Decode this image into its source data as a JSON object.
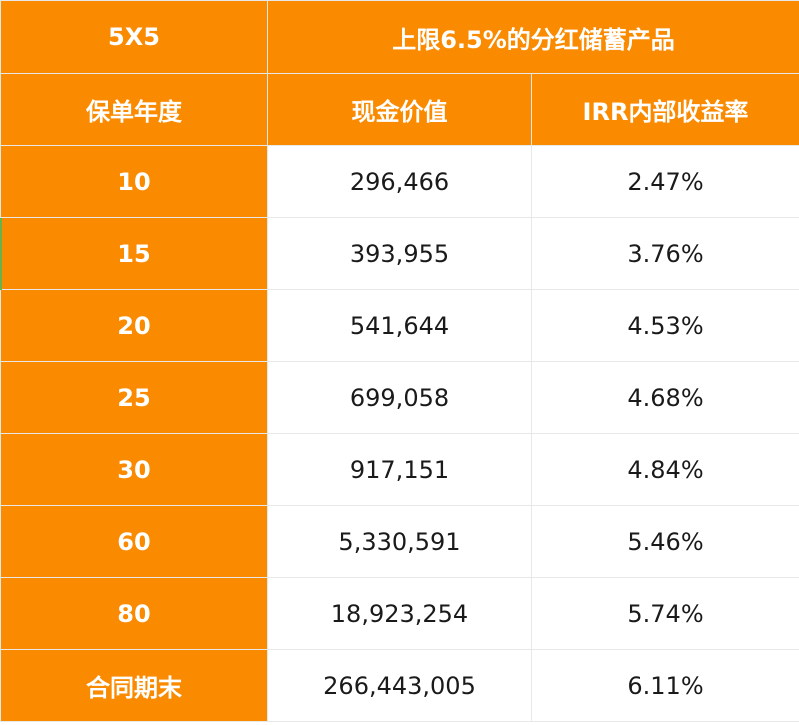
{
  "table": {
    "corner_label": "5X5",
    "product_title": "上限6.5%的分红储蓄产品",
    "headers": {
      "year": "保单年度",
      "cash_value": "现金价值",
      "irr": "IRR内部收益率"
    },
    "rows": [
      {
        "year": "10",
        "cash_value": "296,466",
        "irr": "2.47%"
      },
      {
        "year": "15",
        "cash_value": "393,955",
        "irr": "3.76%"
      },
      {
        "year": "20",
        "cash_value": "541,644",
        "irr": "4.53%"
      },
      {
        "year": "25",
        "cash_value": "699,058",
        "irr": "4.68%"
      },
      {
        "year": "30",
        "cash_value": "917,151",
        "irr": "4.84%"
      },
      {
        "year": "60",
        "cash_value": "5,330,591",
        "irr": "5.46%"
      },
      {
        "year": "80",
        "cash_value": "18,923,254",
        "irr": "5.74%"
      },
      {
        "year": "合同期末",
        "cash_value": "266,443,005",
        "irr": "6.11%"
      }
    ],
    "colors": {
      "header_fill": "#fa8a00",
      "header_text": "#ffffff",
      "body_fill": "#ffffff",
      "body_text": "#1a1a1a"
    }
  }
}
